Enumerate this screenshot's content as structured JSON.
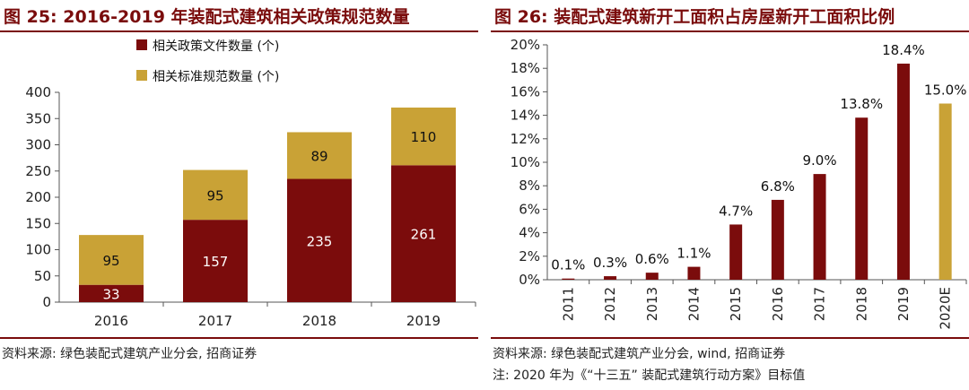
{
  "left": {
    "title": "图 25:  2016-2019 年装配式建筑相关政策规范数量",
    "source": "资料来源:  绿色装配式建筑产业分会,  招商证券"
  },
  "right": {
    "title": "图 26:  装配式建筑新开工面积占房屋新开工面积比例",
    "source": "资料来源:  绿色装配式建筑产业分会, wind, 招商证券",
    "note": "注:  2020 年为《“十三五” 装配式建筑行动方案》目标值"
  },
  "colors": {
    "dark_red": "#7b0c0c",
    "gold": "#c9a236",
    "title": "#7a0c0c"
  },
  "chart_data": [
    {
      "type": "bar",
      "stacked": true,
      "categories": [
        "2016",
        "2017",
        "2018",
        "2019"
      ],
      "series": [
        {
          "name": "相关政策文件数量 (个)",
          "values": [
            33,
            157,
            235,
            261
          ]
        },
        {
          "name": "相关标准规范数量 (个)",
          "values": [
            95,
            95,
            89,
            110
          ]
        }
      ],
      "ylim": [
        0,
        400
      ],
      "yticks": [
        0,
        50,
        100,
        150,
        200,
        250,
        300,
        350,
        400
      ],
      "legend": "top-left"
    },
    {
      "type": "bar",
      "categories": [
        "2011",
        "2012",
        "2013",
        "2014",
        "2015",
        "2016",
        "2017",
        "2018",
        "2019",
        "2020E"
      ],
      "values": [
        0.1,
        0.3,
        0.6,
        1.1,
        4.7,
        6.8,
        9.0,
        13.8,
        18.4,
        15.0
      ],
      "labels": [
        "0.1%",
        "0.3%",
        "0.6%",
        "1.1%",
        "4.7%",
        "6.8%",
        "9.0%",
        "13.8%",
        "18.4%",
        "15.0%"
      ],
      "highlight_last": true,
      "ylim": [
        0,
        20
      ],
      "yticks": [
        "0%",
        "2%",
        "4%",
        "6%",
        "8%",
        "10%",
        "12%",
        "14%",
        "16%",
        "18%",
        "20%"
      ]
    }
  ]
}
